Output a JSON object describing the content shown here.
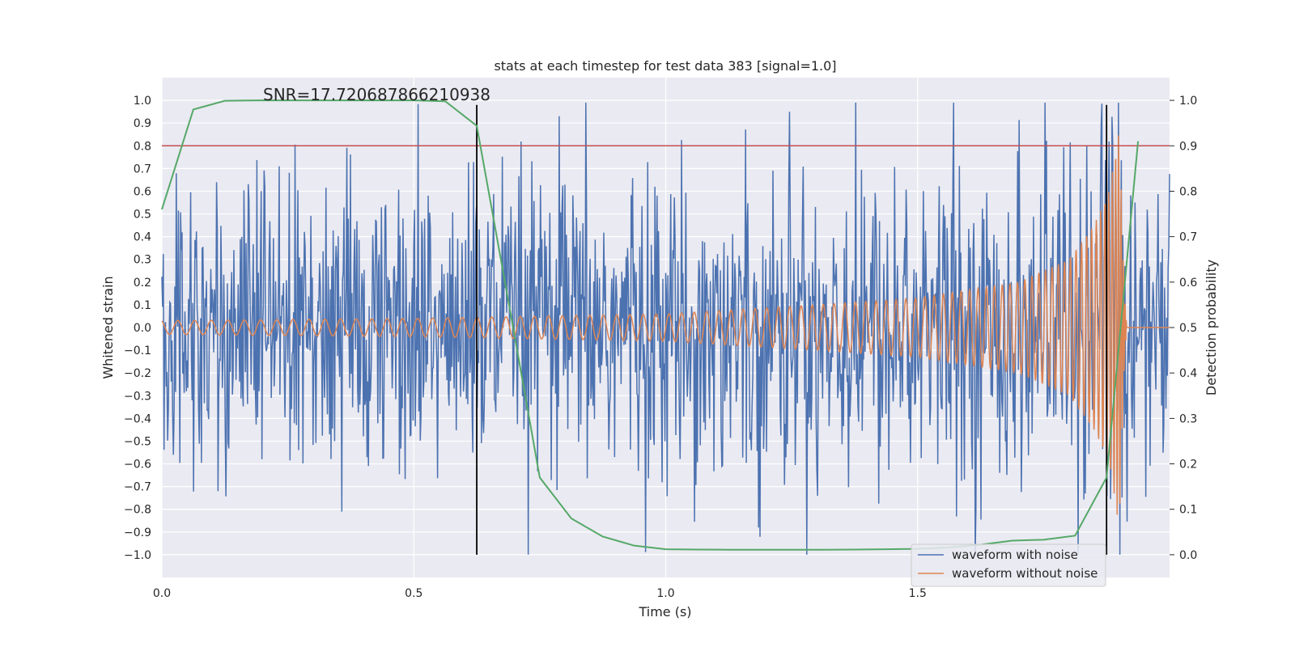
{
  "chart_data": {
    "type": "line",
    "title": "stats at each timestep for test data 383 [signal=1.0]",
    "xlabel": "Time (s)",
    "ylabel_left": "Whitened strain",
    "ylabel_right": "Detection probability",
    "annotation": "SNR=17.720687866210938",
    "xlim": [
      0,
      2.0
    ],
    "ylim_left": [
      -1.1,
      1.1
    ],
    "ylim_right": [
      -0.05,
      1.05
    ],
    "x_ticks": [
      "0.0",
      "0.5",
      "1.0",
      "1.5"
    ],
    "x_tick_values": [
      0,
      0.5,
      1.0,
      1.5
    ],
    "y_left_ticks": [
      "1.0",
      "0.9",
      "0.8",
      "0.7",
      "0.6",
      "0.5",
      "0.4",
      "0.3",
      "0.2",
      "0.1",
      "0.0",
      "−0.1",
      "−0.2",
      "−0.3",
      "−0.4",
      "−0.5",
      "−0.6",
      "−0.7",
      "−0.8",
      "−0.9",
      "−1.0"
    ],
    "y_left_tick_values": [
      1.0,
      0.9,
      0.8,
      0.7,
      0.6,
      0.5,
      0.4,
      0.3,
      0.2,
      0.1,
      0.0,
      -0.1,
      -0.2,
      -0.3,
      -0.4,
      -0.5,
      -0.6,
      -0.7,
      -0.8,
      -0.9,
      -1.0
    ],
    "y_right_ticks": [
      "1.0",
      "0.9",
      "0.8",
      "0.7",
      "0.6",
      "0.5",
      "0.4",
      "0.3",
      "0.2",
      "0.1",
      "0.0"
    ],
    "y_right_tick_values": [
      1.0,
      0.9,
      0.8,
      0.7,
      0.6,
      0.5,
      0.4,
      0.3,
      0.2,
      0.1,
      0.0
    ],
    "grid": true,
    "legend_placement": "lower-right",
    "series": [
      {
        "name": "waveform with noise",
        "color": "#4c72b0",
        "axis": "left",
        "kind": "noisy",
        "amplitude_scale": 0.33,
        "n_points": 1400
      },
      {
        "name": "waveform without noise",
        "color": "#dd8452",
        "axis": "left",
        "kind": "chirp",
        "envelope": [
          [
            0,
            0.03
          ],
          [
            0.5,
            0.04
          ],
          [
            1.0,
            0.06
          ],
          [
            1.3,
            0.1
          ],
          [
            1.5,
            0.13
          ],
          [
            1.7,
            0.2
          ],
          [
            1.8,
            0.3
          ],
          [
            1.85,
            0.45
          ],
          [
            1.88,
            0.6
          ],
          [
            1.9,
            0.88
          ],
          [
            1.91,
            0.2
          ],
          [
            1.915,
            0
          ]
        ]
      },
      {
        "name": "detection probability",
        "color": "#55a868",
        "axis": "right",
        "x": [
          0,
          0.0625,
          0.125,
          0.1875,
          0.25,
          0.3125,
          0.375,
          0.4375,
          0.5,
          0.5625,
          0.625,
          0.6875,
          0.75,
          0.8125,
          0.875,
          0.9375,
          1.0,
          1.0625,
          1.125,
          1.1875,
          1.25,
          1.3125,
          1.375,
          1.4375,
          1.5,
          1.5625,
          1.625,
          1.6875,
          1.75,
          1.8125,
          1.875,
          1.9375
        ],
        "y": [
          0.76,
          0.98,
          0.999,
          1.0,
          1.0,
          1.0,
          1.0,
          1.0,
          1.0,
          0.998,
          0.944,
          0.56,
          0.17,
          0.08,
          0.04,
          0.02,
          0.012,
          0.0115,
          0.011,
          0.011,
          0.011,
          0.011,
          0.0115,
          0.012,
          0.013,
          0.016,
          0.022,
          0.031,
          0.033,
          0.042,
          0.17,
          0.91
        ]
      }
    ],
    "threshold": {
      "axis": "right",
      "value": 0.9,
      "color": "#c44e52"
    },
    "vlines": [
      {
        "x": 0.625,
        "y_top": 0.99,
        "y_bottom": -1.0,
        "color": "#000000"
      },
      {
        "x": 1.875,
        "y_top": 0.99,
        "y_bottom": -1.0,
        "color": "#000000"
      }
    ]
  }
}
